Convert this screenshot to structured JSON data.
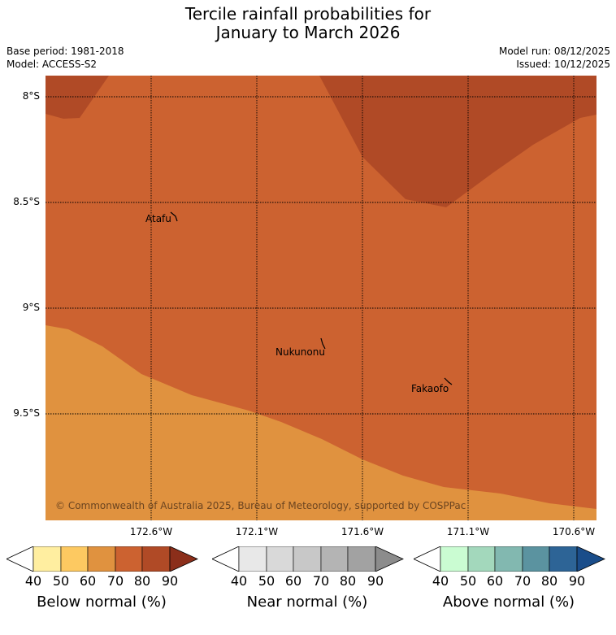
{
  "header": {
    "title_line1": "Tercile rainfall probabilities for",
    "title_line2": "January to March 2026",
    "base_period": "Base period: 1981-2018",
    "model": "Model: ACCESS-S2",
    "model_run": "Model run: 08/12/2025",
    "issued": "Issued: 10/12/2025"
  },
  "map": {
    "latitude_labels": [
      "8°S",
      "8.5°S",
      "9°S",
      "9.5°S"
    ],
    "longitude_labels": [
      "172.6°W",
      "172.1°W",
      "171.6°W",
      "171.1°W",
      "170.6°W"
    ],
    "places": [
      {
        "name": "Atafu"
      },
      {
        "name": "Nukunonu"
      },
      {
        "name": "Fakaofo"
      }
    ],
    "copyright": "© Commonwealth of Australia 2025, Bureau of Meteorology, supported by COSPPac",
    "colors": {
      "below_60_70": "#e0923f",
      "below_70_80": "#cc6230",
      "below_80_90": "#b04a26"
    }
  },
  "legends": [
    {
      "title": "Below normal (%)",
      "ticks": [
        "40",
        "50",
        "60",
        "70",
        "80",
        "90"
      ],
      "colors": [
        "#ffeea0",
        "#fdc961",
        "#e0923f",
        "#cc6230",
        "#b04a26",
        "#8b2e1a"
      ]
    },
    {
      "title": "Near normal (%)",
      "ticks": [
        "40",
        "50",
        "60",
        "70",
        "80",
        "90"
      ],
      "colors": [
        "#e8e8e8",
        "#d9d9d9",
        "#c8c8c8",
        "#b4b4b4",
        "#a2a2a2",
        "#8c8c8c"
      ]
    },
    {
      "title": "Above normal (%)",
      "ticks": [
        "40",
        "50",
        "60",
        "70",
        "80",
        "90"
      ],
      "colors": [
        "#cafcd2",
        "#a3d8bc",
        "#82b8b0",
        "#5b93a0",
        "#2d6496",
        "#1a4d8a"
      ]
    }
  ]
}
